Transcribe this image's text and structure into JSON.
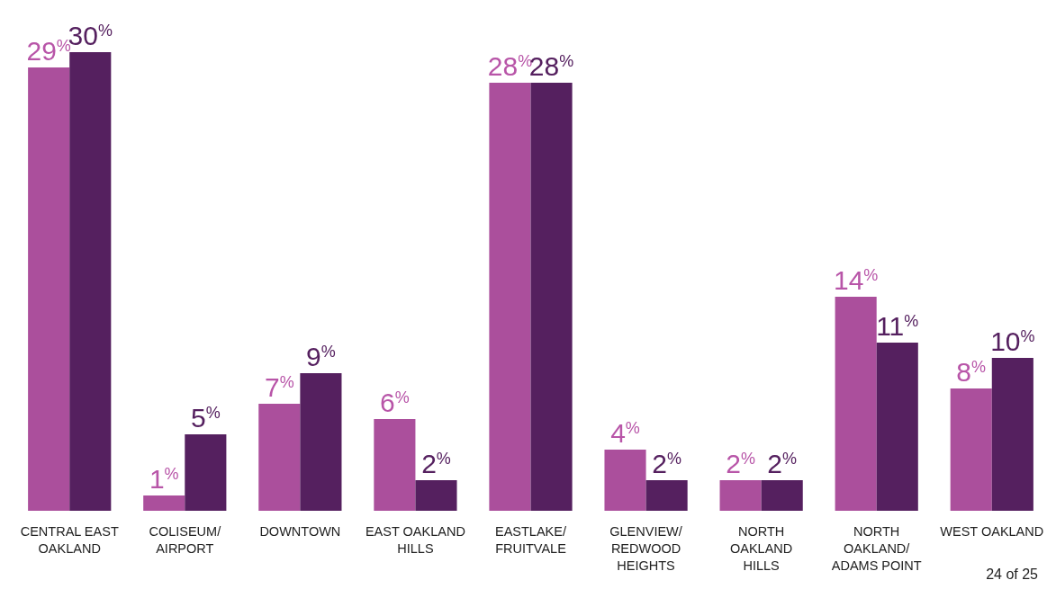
{
  "chart_data": {
    "type": "bar",
    "categories": [
      "CENTRAL EAST OAKLAND",
      "COLISEUM/ AIRPORT",
      "DOWNTOWN",
      "EAST OAKLAND HILLS",
      "EASTLAKE/ FRUITVALE",
      "GLENVIEW/ REDWOOD HEIGHTS",
      "NORTH OAKLAND HILLS",
      "NORTH OAKLAND/ ADAMS POINT",
      "WEST OAKLAND"
    ],
    "series": [
      {
        "color": "#ab4f9c",
        "values": [
          29,
          1,
          7,
          6,
          28,
          4,
          2,
          14,
          8
        ],
        "value_labels": [
          "29$^{%}$",
          "1$^{%}$",
          "7$^{%}$",
          "6$^{%}$",
          "28$^{%}$",
          "4$^{%}$",
          "2$^{%}$",
          "14$^{%}$",
          "8$^{%}$"
        ]
      },
      {
        "color": "#55205f",
        "values": [
          30,
          5,
          9,
          2,
          28,
          2,
          2,
          11,
          10
        ],
        "value_labels": [
          "30$^{%}$",
          "5$^{%}$",
          "9$^{%}$",
          "2$^{%}$",
          "28$^{%}$",
          "2$^{%}$",
          "2$^{%}$",
          "11$^{%}$",
          "10$^{%}$"
        ]
      }
    ],
    "annotations": [
      "24 of 25"
    ],
    "grid": false
  }
}
